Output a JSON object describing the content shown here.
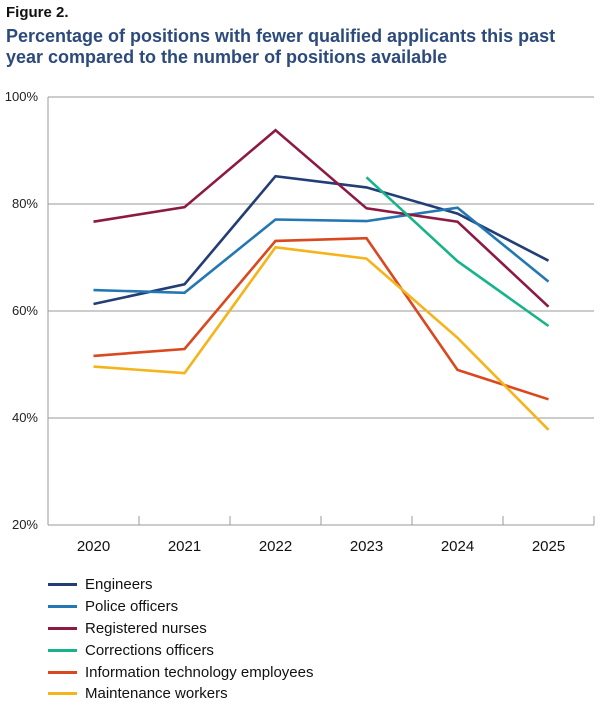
{
  "figure_label": "Figure 2.",
  "chart_data": {
    "type": "line",
    "title": "Percentage of positions with fewer qualified applicants this past year compared to the number of positions available",
    "xlabel": "",
    "ylabel": "",
    "categories": [
      "2020",
      "2021",
      "2022",
      "2023",
      "2024",
      "2025"
    ],
    "ylim": [
      20,
      100
    ],
    "yticks": [
      20,
      40,
      60,
      80,
      100
    ],
    "ytick_labels": [
      "20%",
      "40%",
      "60%",
      "80%",
      "100%"
    ],
    "grid": true,
    "legend_position": "bottom",
    "series": [
      {
        "name": "Engineers",
        "color": "#233e74",
        "values": [
          61.3,
          65,
          85.2,
          83.1,
          78.2,
          69.4
        ]
      },
      {
        "name": "Police officers",
        "color": "#2377b2",
        "values": [
          63.9,
          63.4,
          77.1,
          76.8,
          79.3,
          65.5
        ]
      },
      {
        "name": "Registered nurses",
        "color": "#8c1a44",
        "values": [
          76.7,
          79.4,
          93.8,
          79.2,
          76.7,
          60.8
        ]
      },
      {
        "name": "Corrections officers",
        "color": "#17b48a",
        "values": [
          null,
          null,
          null,
          85,
          69.3,
          57.2
        ]
      },
      {
        "name": "Information technology employees",
        "color": "#d9481e",
        "values": [
          51.6,
          52.9,
          73.1,
          73.6,
          49,
          43.5
        ]
      },
      {
        "name": "Maintenance workers",
        "color": "#f5b41b",
        "values": [
          49.6,
          48.4,
          71.9,
          69.8,
          55,
          37.8
        ]
      }
    ]
  }
}
